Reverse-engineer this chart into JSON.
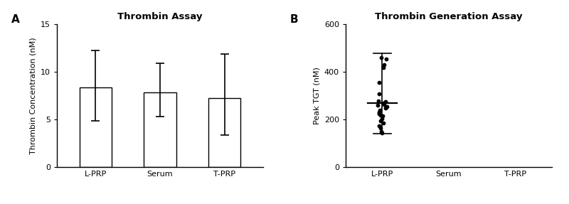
{
  "panel_A": {
    "title": "Thrombin Assay",
    "ylabel": "Thrombin Concentration (nM)",
    "categories": [
      "L-PRP",
      "Serum",
      "T-PRP"
    ],
    "means": [
      8.4,
      7.9,
      7.3
    ],
    "errors_upper": [
      12.3,
      10.9,
      11.9
    ],
    "errors_lower": [
      4.9,
      5.3,
      3.4
    ],
    "ylim": [
      0,
      15
    ],
    "yticks": [
      0,
      5,
      10,
      15
    ]
  },
  "panel_B": {
    "title": "Thrombin Generation Assay",
    "ylabel": "Peak TGT (nM)",
    "categories": [
      "L-PRP",
      "Serum",
      "T-PRP"
    ],
    "mean": 270,
    "error_upper": 480,
    "error_lower": 140,
    "dots": [
      460,
      455,
      430,
      420,
      355,
      310,
      280,
      275,
      270,
      265,
      260,
      255,
      250,
      240,
      230,
      225,
      220,
      215,
      205,
      195,
      185,
      175,
      165,
      150,
      145
    ],
    "ylim": [
      0,
      600
    ],
    "yticks": [
      0,
      200,
      400,
      600
    ]
  },
  "bg_color": "#ffffff",
  "bar_color": "#ffffff",
  "bar_edge_color": "#000000",
  "error_color": "#000000",
  "dot_color": "#000000",
  "label_fontsize": 8,
  "title_fontsize": 9.5,
  "tick_fontsize": 8,
  "panel_label_fontsize": 11
}
